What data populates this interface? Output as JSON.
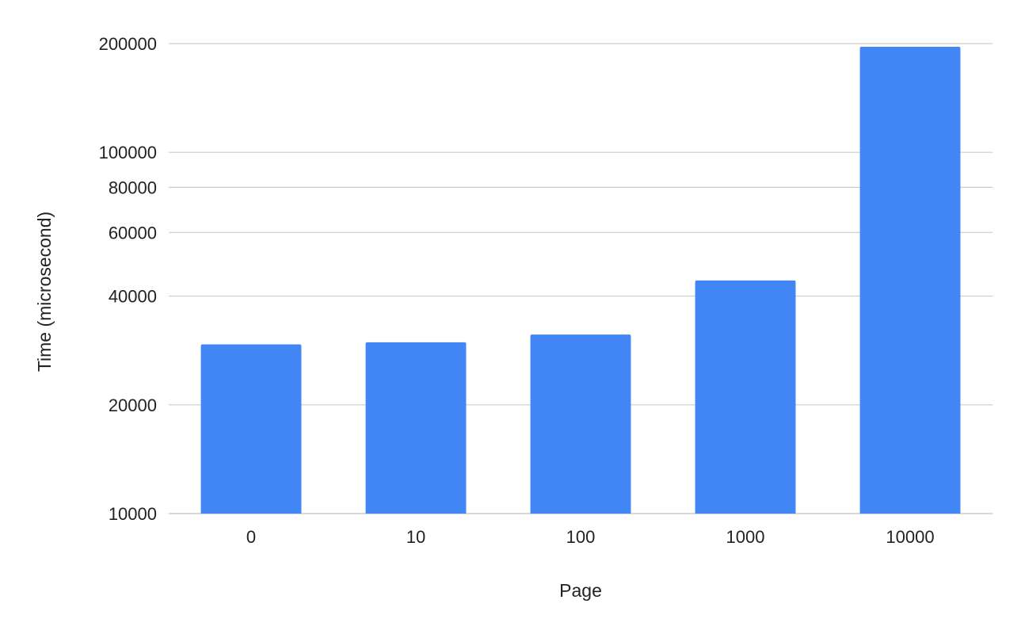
{
  "chart_data": {
    "type": "bar",
    "title": "",
    "xlabel": "Page",
    "ylabel": "Time (microsecond)",
    "categories": [
      "0",
      "10",
      "100",
      "1000",
      "10000"
    ],
    "values": [
      29400,
      29800,
      31300,
      44200,
      196000
    ],
    "yscale": "log",
    "ylim": [
      10000,
      200000
    ],
    "yticks": [
      10000,
      20000,
      40000,
      60000,
      80000,
      100000,
      200000
    ],
    "ytick_labels": [
      "10000",
      "20000",
      "40000",
      "60000",
      "80000",
      "100000",
      "200000"
    ],
    "grid": true,
    "legend": "none",
    "colors": {
      "bar": "#4285f4",
      "grid": "#cccccc",
      "text": "#222222"
    }
  }
}
